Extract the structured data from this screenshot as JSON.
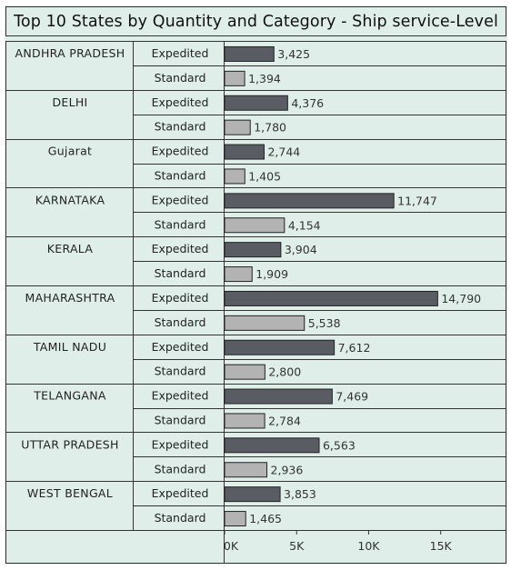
{
  "chart_data": {
    "type": "bar",
    "orientation": "horizontal",
    "title": "Top 10 States by Quantity and Category - Ship service-Level",
    "categories": [
      "ANDHRA PRADESH",
      "DELHI",
      "Gujarat",
      "KARNATAKA",
      "KERALA",
      "MAHARASHTRA",
      "TAMIL NADU",
      "TELANGANA",
      "UTTAR PRADESH",
      "WEST BENGAL"
    ],
    "subcategories": [
      "Expedited",
      "Standard"
    ],
    "series": [
      {
        "name": "Expedited",
        "color": "#595d63",
        "values": [
          3425,
          4376,
          2744,
          11747,
          3904,
          14790,
          7612,
          7469,
          6563,
          3853
        ]
      },
      {
        "name": "Standard",
        "color": "#b3b3b3",
        "values": [
          1394,
          1780,
          1405,
          4154,
          1909,
          5538,
          2800,
          2784,
          2936,
          1465
        ]
      }
    ],
    "value_labels": {
      "Expedited": [
        "3,425",
        "4,376",
        "2,744",
        "11,747",
        "3,904",
        "14,790",
        "7,612",
        "7,469",
        "6,563",
        "3,853"
      ],
      "Standard": [
        "1,394",
        "1,780",
        "1,405",
        "4,154",
        "1,909",
        "5,538",
        "2,800",
        "2,784",
        "2,936",
        "1,465"
      ]
    },
    "xlim": [
      0,
      19500
    ],
    "xticks": [
      0,
      5000,
      10000,
      15000
    ],
    "xtick_labels": [
      "0K",
      "5K",
      "10K",
      "15K"
    ],
    "grid": false,
    "background": "#dfeee9"
  }
}
